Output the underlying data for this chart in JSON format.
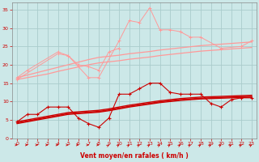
{
  "x": [
    0,
    1,
    2,
    3,
    4,
    5,
    6,
    7,
    8,
    9,
    10,
    11,
    12,
    13,
    14,
    15,
    16,
    17,
    18,
    19,
    20,
    21,
    22,
    23
  ],
  "pink_jagged1": [
    16.5,
    18.5,
    null,
    null,
    23.5,
    22.5,
    null,
    16.5,
    16.5,
    null,
    26.5,
    32.0,
    31.5,
    35.5,
    29.5,
    29.5,
    29.0,
    27.5,
    27.5,
    null,
    24.5,
    null,
    25.0,
    26.5
  ],
  "pink_jagged2": [
    16.0,
    null,
    null,
    null,
    23.0,
    22.5,
    20.0,
    19.5,
    18.5,
    23.5,
    24.5,
    null,
    null,
    null,
    null,
    null,
    null,
    null,
    null,
    null,
    null,
    null,
    null,
    null
  ],
  "pink_trend1": [
    16.5,
    17.2,
    17.9,
    18.6,
    19.3,
    20.0,
    20.7,
    21.4,
    22.0,
    22.3,
    22.6,
    23.0,
    23.3,
    23.6,
    24.0,
    24.3,
    24.6,
    24.9,
    25.2,
    25.4,
    25.6,
    25.8,
    26.0,
    26.2
  ],
  "pink_trend2": [
    16.0,
    16.5,
    17.0,
    17.5,
    18.2,
    18.8,
    19.4,
    20.0,
    20.5,
    20.8,
    21.1,
    21.5,
    21.8,
    22.1,
    22.5,
    22.8,
    23.1,
    23.4,
    23.7,
    23.9,
    24.1,
    24.3,
    24.5,
    24.7
  ],
  "red_jagged": [
    4.5,
    6.5,
    6.5,
    8.5,
    8.5,
    8.5,
    5.5,
    4.0,
    3.0,
    5.5,
    12.0,
    12.0,
    13.5,
    15.0,
    15.0,
    12.5,
    12.0,
    12.0,
    12.0,
    9.5,
    8.5,
    10.5,
    11.0,
    11.0
  ],
  "red_trend1": [
    4.5,
    5.0,
    5.5,
    6.0,
    6.5,
    7.0,
    7.2,
    7.4,
    7.6,
    8.0,
    8.5,
    9.0,
    9.4,
    9.8,
    10.2,
    10.5,
    10.8,
    11.0,
    11.2,
    11.3,
    11.4,
    11.5,
    11.6,
    11.7
  ],
  "red_trend2": [
    4.2,
    4.7,
    5.2,
    5.7,
    6.2,
    6.7,
    6.9,
    7.1,
    7.3,
    7.7,
    8.2,
    8.7,
    9.1,
    9.5,
    9.9,
    10.2,
    10.5,
    10.7,
    10.9,
    11.0,
    11.1,
    11.2,
    11.3,
    11.4
  ],
  "red_trend3": [
    4.0,
    4.5,
    5.0,
    5.5,
    6.0,
    6.5,
    6.7,
    6.9,
    7.1,
    7.5,
    8.0,
    8.5,
    8.9,
    9.3,
    9.7,
    10.0,
    10.3,
    10.5,
    10.7,
    10.8,
    10.9,
    11.0,
    11.1,
    11.2
  ],
  "background_color": "#cce8e8",
  "grid_color": "#aacccc",
  "pink_color": "#ff9999",
  "red_color": "#cc0000",
  "dark_red_color": "#880000",
  "xlabel": "Vent moyen/en rafales ( km/h )",
  "ylim": [
    0,
    37
  ],
  "xlim": [
    -0.5,
    23.5
  ],
  "yticks": [
    0,
    5,
    10,
    15,
    20,
    25,
    30,
    35
  ],
  "xticks": [
    0,
    1,
    2,
    3,
    4,
    5,
    6,
    7,
    8,
    9,
    10,
    11,
    12,
    13,
    14,
    15,
    16,
    17,
    18,
    19,
    20,
    21,
    22,
    23
  ]
}
